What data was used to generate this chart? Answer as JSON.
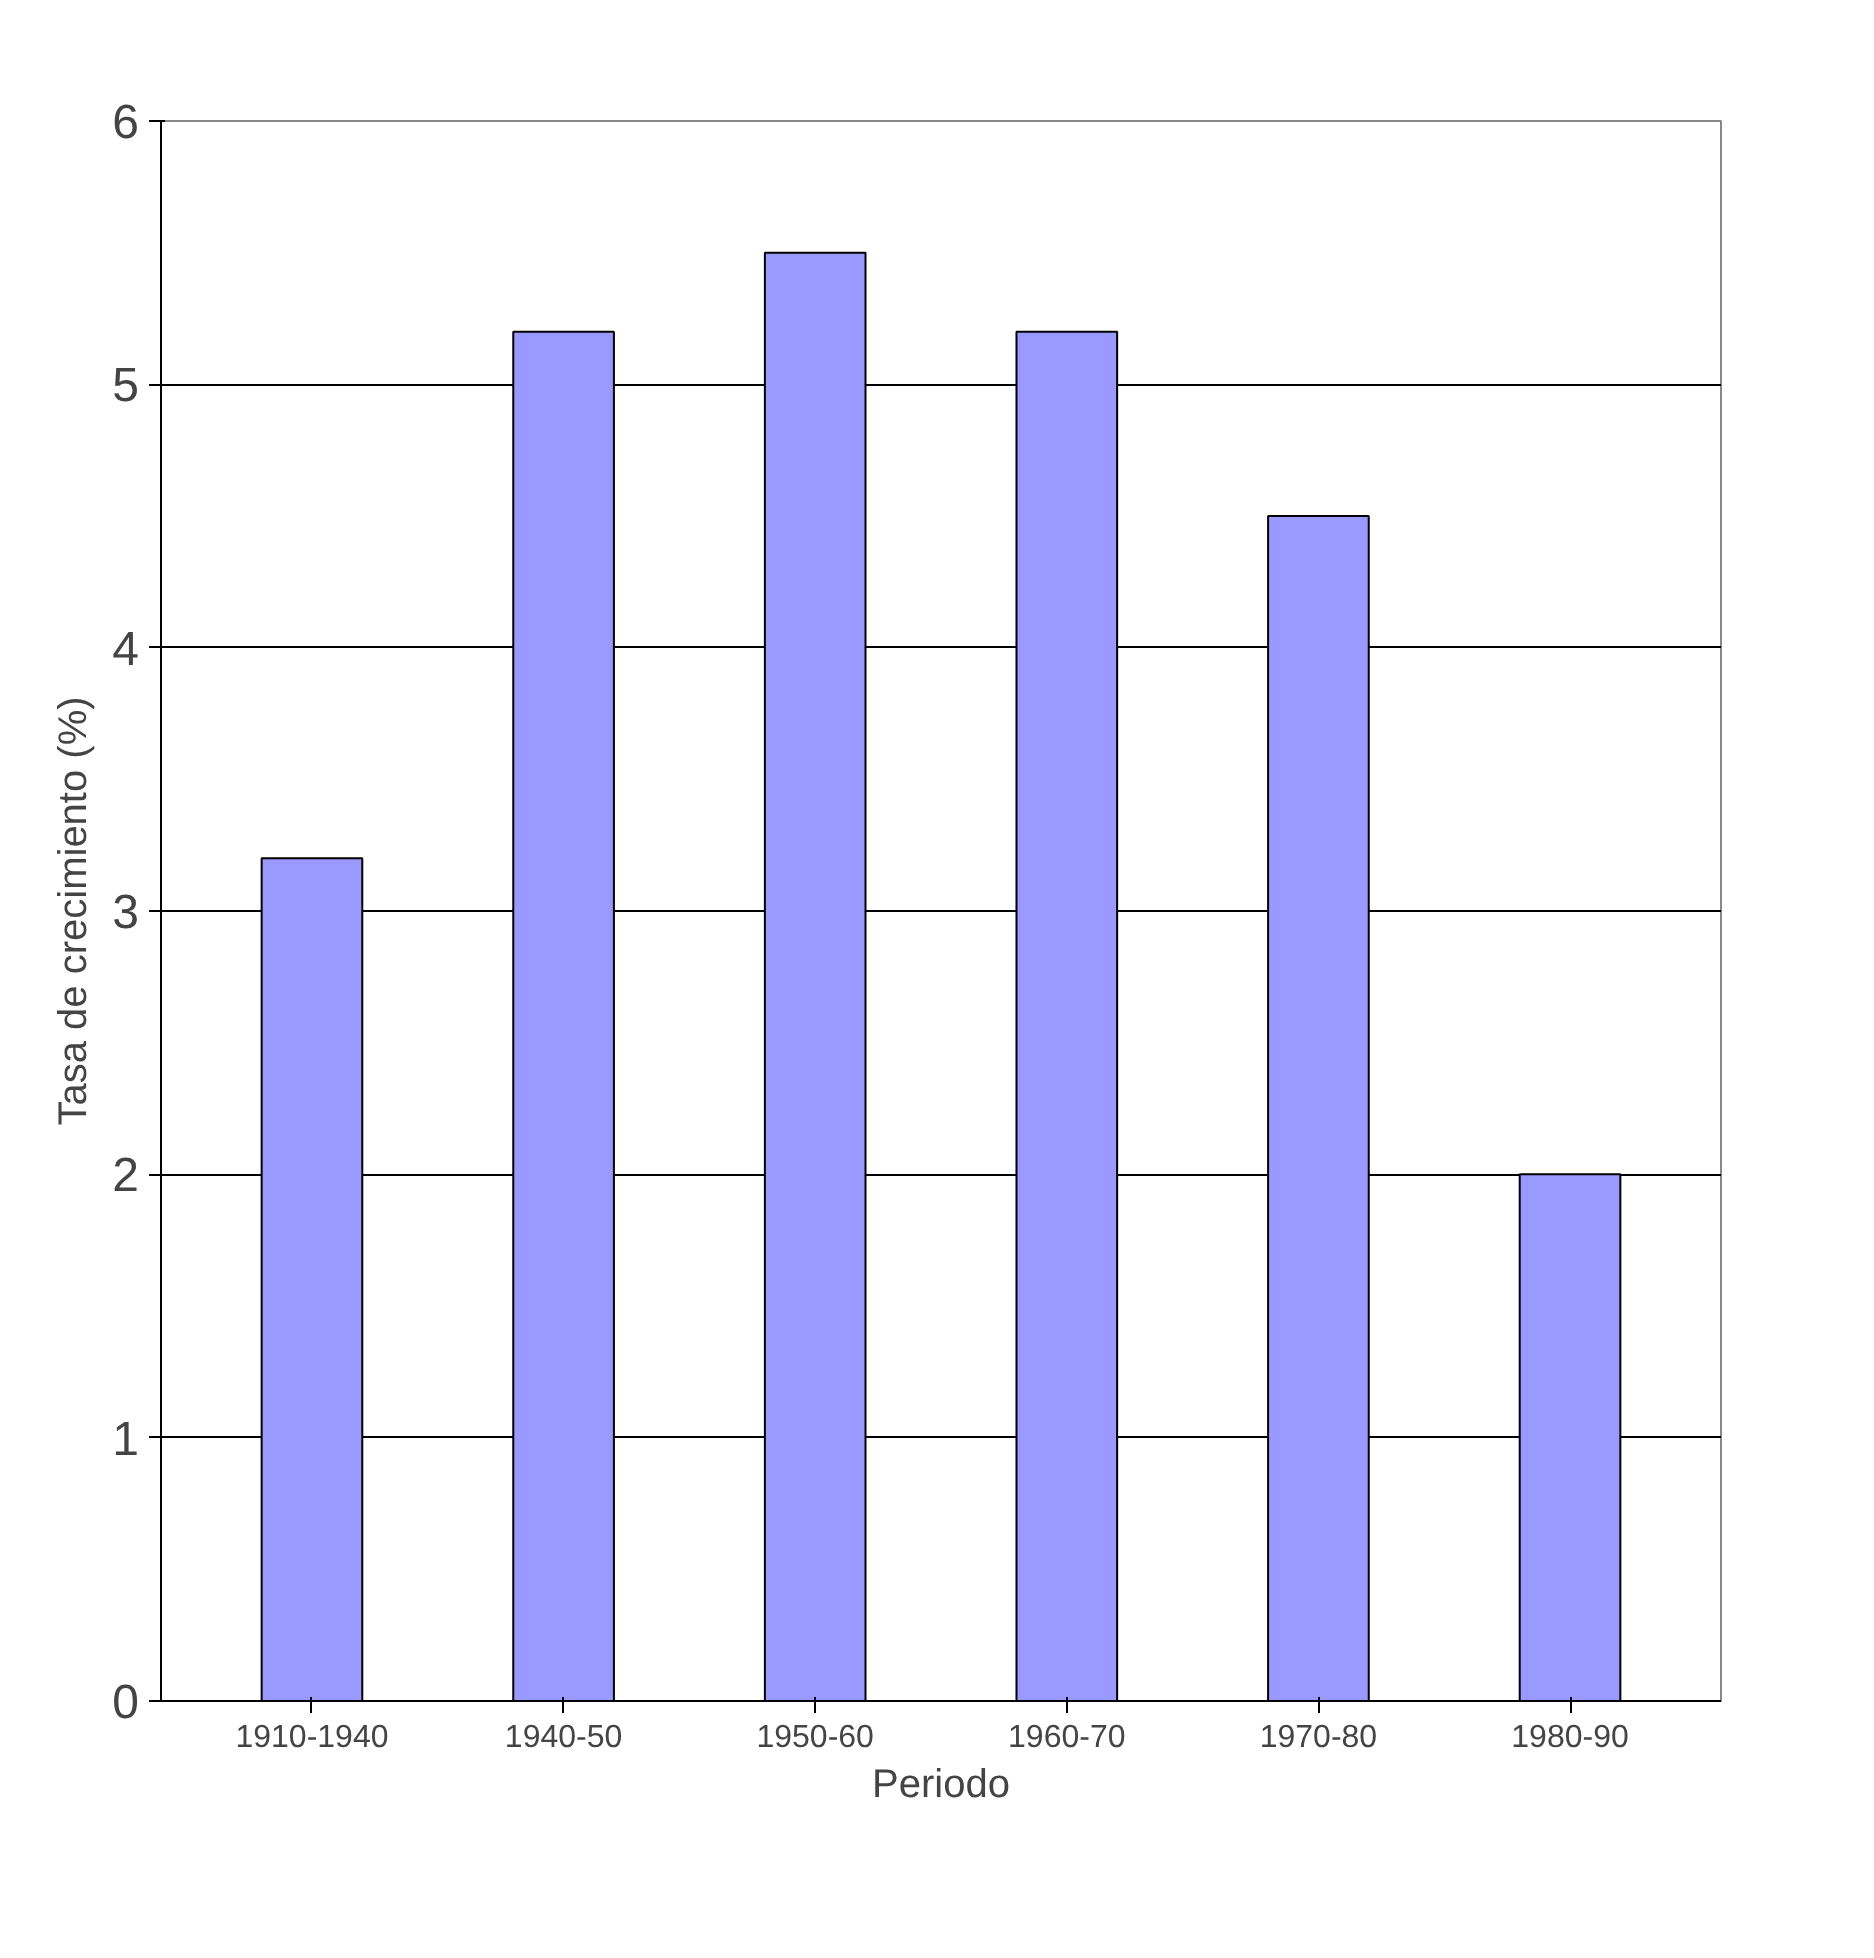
{
  "chart_data": {
    "type": "bar",
    "xlabel": "Periodo",
    "ylabel": "Tasa de crecimiento (%)",
    "categories": [
      "1910-1940",
      "1940-50",
      "1950-60",
      "1960-70",
      "1970-80",
      "1980-90"
    ],
    "values": [
      3.2,
      5.2,
      5.5,
      5.2,
      4.5,
      2.0
    ],
    "color": "#9999ff",
    "ylim": [
      0,
      6
    ],
    "yticks": [
      0,
      1,
      2,
      3,
      4,
      5,
      6
    ],
    "grid": "y"
  }
}
